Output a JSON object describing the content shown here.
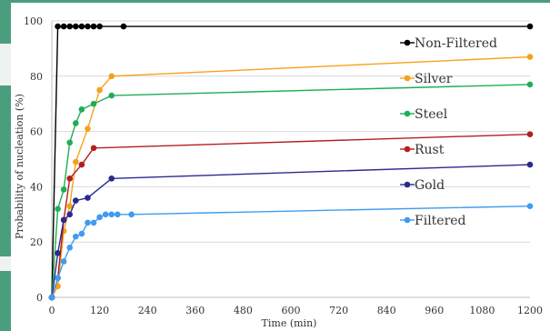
{
  "chart_data": {
    "type": "line",
    "title": "",
    "xlabel": "Time (min)",
    "ylabel": "Probability of nucleation (%)",
    "xlim": [
      0,
      1200
    ],
    "ylim": [
      0,
      100
    ],
    "x_ticks": [
      0,
      120,
      240,
      360,
      480,
      600,
      720,
      840,
      960,
      1080,
      1200
    ],
    "y_ticks": [
      0,
      20,
      40,
      60,
      80,
      100
    ],
    "grid": "horizontal",
    "legend_position": "right, inside plot, each label beside its series",
    "series": [
      {
        "name": "Non-Filtered",
        "color": "#000000",
        "points": [
          [
            0,
            0
          ],
          [
            15,
            98
          ],
          [
            30,
            98
          ],
          [
            45,
            98
          ],
          [
            60,
            98
          ],
          [
            75,
            98
          ],
          [
            90,
            98
          ],
          [
            105,
            98
          ],
          [
            120,
            98
          ],
          [
            180,
            98
          ],
          [
            1200,
            98
          ]
        ]
      },
      {
        "name": "Silver",
        "color": "#f5a21a",
        "points": [
          [
            0,
            0
          ],
          [
            15,
            4
          ],
          [
            30,
            24
          ],
          [
            45,
            33
          ],
          [
            60,
            49
          ],
          [
            90,
            61
          ],
          [
            120,
            75
          ],
          [
            150,
            80
          ],
          [
            1200,
            87
          ]
        ]
      },
      {
        "name": "Steel",
        "color": "#1fae55",
        "points": [
          [
            0,
            0
          ],
          [
            15,
            32
          ],
          [
            30,
            39
          ],
          [
            45,
            56
          ],
          [
            60,
            63
          ],
          [
            75,
            68
          ],
          [
            105,
            70
          ],
          [
            150,
            73
          ],
          [
            1200,
            77
          ]
        ]
      },
      {
        "name": "Rust",
        "color": "#b21f1f",
        "points": [
          [
            0,
            0
          ],
          [
            15,
            7
          ],
          [
            30,
            28
          ],
          [
            45,
            43
          ],
          [
            75,
            48
          ],
          [
            105,
            54
          ],
          [
            1200,
            59
          ]
        ]
      },
      {
        "name": "Gold",
        "color": "#2b2b8f",
        "points": [
          [
            0,
            0
          ],
          [
            15,
            16
          ],
          [
            30,
            28
          ],
          [
            45,
            30
          ],
          [
            60,
            35
          ],
          [
            90,
            36
          ],
          [
            150,
            43
          ],
          [
            1200,
            48
          ]
        ]
      },
      {
        "name": "Filtered",
        "color": "#3f9cf0",
        "points": [
          [
            0,
            0
          ],
          [
            15,
            7
          ],
          [
            30,
            13
          ],
          [
            45,
            18
          ],
          [
            60,
            22
          ],
          [
            75,
            23
          ],
          [
            90,
            27
          ],
          [
            105,
            27
          ],
          [
            120,
            29
          ],
          [
            135,
            30
          ],
          [
            150,
            30
          ],
          [
            165,
            30
          ],
          [
            200,
            30
          ],
          [
            1200,
            33
          ]
        ]
      }
    ]
  }
}
